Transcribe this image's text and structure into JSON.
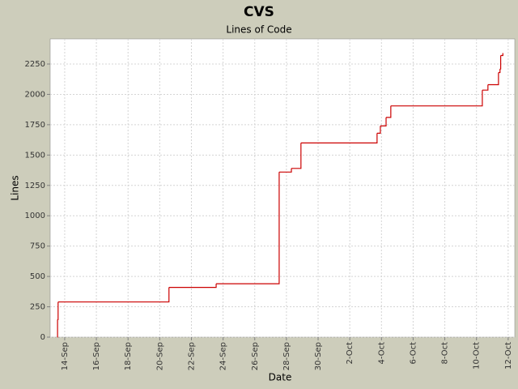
{
  "chart_data": {
    "type": "step",
    "title": "CVS",
    "subtitle": "Lines of Code",
    "x_label": "Date",
    "y_label": "Lines",
    "series": [
      {
        "name": "Lines",
        "color": "#cc0000",
        "x": [
          "13-Sep 13:00",
          "13-Sep 13:10",
          "13-Sep 14:00",
          "20-Sep 14:00",
          "23-Sep 13:30",
          "27-Sep 13:00",
          "28-Sep 07:30",
          "28-Sep 22:00",
          "3-Oct 17:20",
          "3-Oct 22:20",
          "4-Oct 07:00",
          "4-Oct 14:10",
          "10-Oct 08:50",
          "10-Oct 17:20",
          "11-Oct 09:20",
          "11-Oct 11:40",
          "11-Oct 12:40",
          "11-Oct 16:00"
        ],
        "values": [
          0,
          145,
          290,
          410,
          440,
          1360,
          1390,
          1600,
          1680,
          1740,
          1810,
          1905,
          2035,
          2080,
          2180,
          2210,
          2320,
          2340
        ]
      }
    ],
    "xlim": [
      "13-Sep 02:00",
      "12-Oct 10:00"
    ],
    "xticks": [
      {
        "value": "14-Sep 00:00",
        "label": "14-Sep"
      },
      {
        "value": "16-Sep 00:00",
        "label": "16-Sep"
      },
      {
        "value": "18-Sep 00:00",
        "label": "18-Sep"
      },
      {
        "value": "20-Sep 00:00",
        "label": "20-Sep"
      },
      {
        "value": "22-Sep 00:00",
        "label": "22-Sep"
      },
      {
        "value": "24-Sep 00:00",
        "label": "24-Sep"
      },
      {
        "value": "26-Sep 00:00",
        "label": "26-Sep"
      },
      {
        "value": "28-Sep 00:00",
        "label": "28-Sep"
      },
      {
        "value": "30-Sep 00:00",
        "label": "30-Sep"
      },
      {
        "value": "2-Oct 00:00",
        "label": "2-Oct"
      },
      {
        "value": "4-Oct 00:00",
        "label": "4-Oct"
      },
      {
        "value": "6-Oct 00:00",
        "label": "6-Oct"
      },
      {
        "value": "8-Oct 00:00",
        "label": "8-Oct"
      },
      {
        "value": "10-Oct 00:00",
        "label": "10-Oct"
      },
      {
        "value": "12-Oct 00:00",
        "label": "12-Oct"
      }
    ],
    "ylim": [
      0,
      2457
    ],
    "yticks": [
      0,
      250,
      500,
      750,
      1000,
      1250,
      1500,
      1750,
      2000,
      2250
    ],
    "grid": true
  }
}
